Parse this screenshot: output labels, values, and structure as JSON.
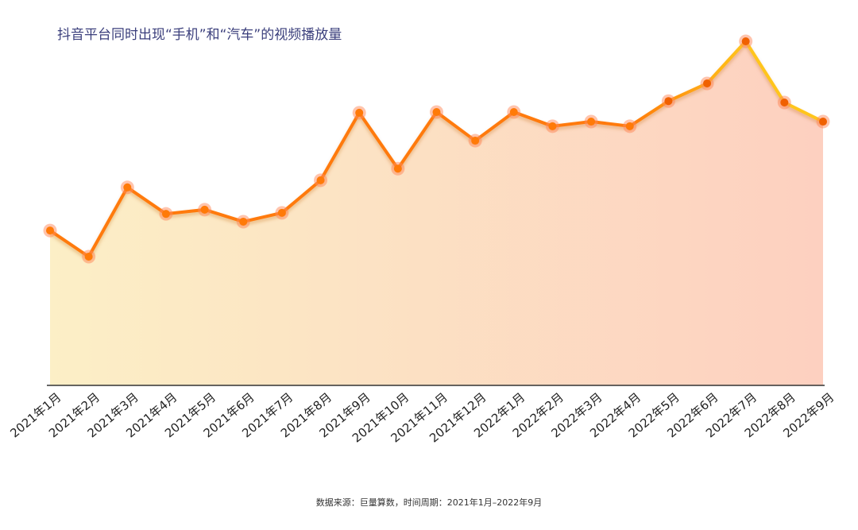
{
  "chart_data": {
    "type": "area",
    "title": "抖音平台同时出现“手机”和“汽车”的视频播放量",
    "note": "数据来源：巨量算数，时间周期：2021年1月–2022年9月",
    "categories": [
      "2021年1月",
      "2021年2月",
      "2021年3月",
      "2021年4月",
      "2021年5月",
      "2021年6月",
      "2021年7月",
      "2021年8月",
      "2021年9月",
      "2021年10月",
      "2021年11月",
      "2021年12月",
      "2022年1月",
      "2022年2月",
      "2022年3月",
      "2022年4月",
      "2022年5月",
      "2022年6月",
      "2022年7月",
      "2022年8月",
      "2022年9月"
    ],
    "values": [
      43.8,
      36.4,
      56.0,
      48.5,
      49.7,
      46.3,
      48.8,
      58.0,
      77.1,
      61.3,
      77.3,
      69.2,
      77.3,
      73.3,
      74.6,
      73.3,
      80.4,
      85.4,
      97.3,
      80.0,
      74.6
    ],
    "ylim": [
      0,
      100
    ],
    "color": "#ff7a08",
    "color_end": "#ffc51c",
    "fill_start": "#fcefc6",
    "fill_end": "#fdd0c0"
  }
}
